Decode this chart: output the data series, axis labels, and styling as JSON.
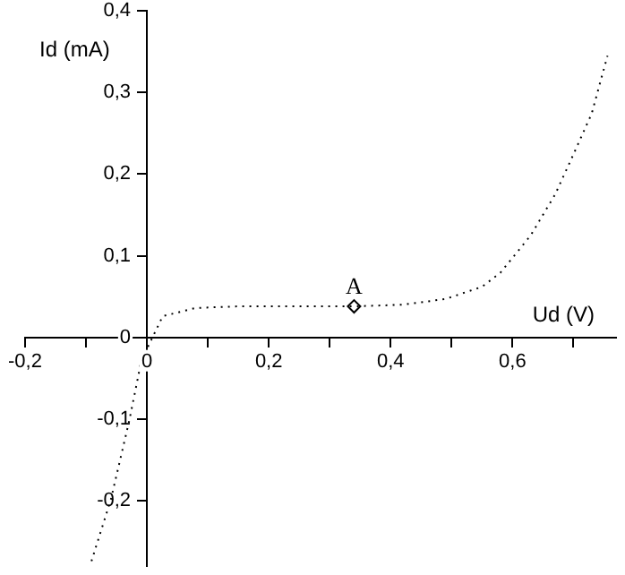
{
  "chart_data": {
    "type": "line",
    "xlabel": "Ud (V)",
    "ylabel": "Id (mA)",
    "xlim": [
      -0.2,
      0.77
    ],
    "ylim": [
      -0.28,
      0.4
    ],
    "xticks": [
      {
        "value": -0.2,
        "label": "-0,2"
      },
      {
        "value": -0.1,
        "label": null
      },
      0,
      {
        "value": 0.1,
        "label": null
      },
      {
        "value": 0.2,
        "label": "0,2"
      },
      {
        "value": 0.3,
        "label": null
      },
      {
        "value": 0.4,
        "label": "0,4"
      },
      {
        "value": 0.5,
        "label": null
      },
      {
        "value": 0.6,
        "label": "0,6"
      },
      {
        "value": 0.7,
        "label": null
      }
    ],
    "yticks": [
      {
        "value": -0.2,
        "label": "-0,2"
      },
      {
        "value": -0.1,
        "label": "-0,1"
      },
      0,
      {
        "value": 0.1,
        "label": "0,1"
      },
      {
        "value": 0.2,
        "label": "0,2"
      },
      {
        "value": 0.3,
        "label": "0,3"
      },
      {
        "value": 0.4,
        "label": "0,4"
      }
    ],
    "grid": false,
    "legend": false,
    "series": [
      {
        "type": "line",
        "color": "#000000",
        "line_style": "dotted",
        "marker": "none",
        "x": [
          -0.091,
          -0.059,
          -0.029,
          -0.009,
          0.026,
          0.08,
          0.15,
          0.25,
          0.34,
          0.42,
          0.49,
          0.55,
          0.58,
          0.63,
          0.67,
          0.7,
          0.73,
          0.756
        ],
        "values": [
          -0.274,
          -0.198,
          -0.102,
          -0.028,
          0.026,
          0.036,
          0.038,
          0.038,
          0.038,
          0.04,
          0.047,
          0.062,
          0.079,
          0.125,
          0.175,
          0.224,
          0.274,
          0.345
        ]
      },
      {
        "type": "scatter",
        "color": "#000000",
        "marker": "diamond",
        "x": [
          0.34
        ],
        "values": [
          0.038
        ]
      }
    ],
    "annotations": [
      {
        "text": "A",
        "x": 0.34,
        "y": 0.038
      }
    ]
  }
}
